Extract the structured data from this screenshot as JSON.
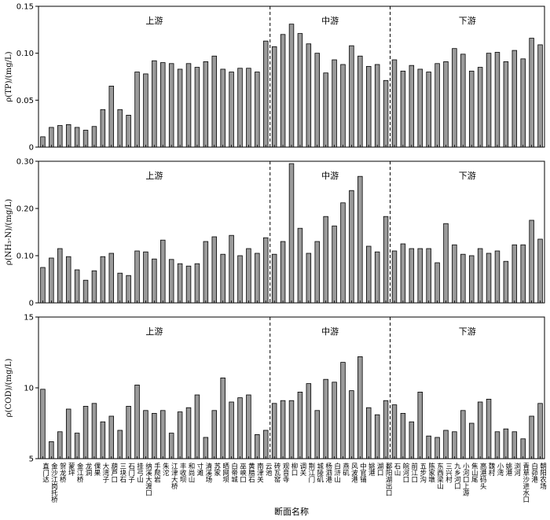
{
  "chart_data": [
    {
      "type": "bar",
      "ylabel": "ρ(TP)/(mg/L)",
      "ylim": [
        0,
        0.15
      ],
      "yticks": [
        "0",
        "0.05",
        "0.10",
        "0.15"
      ],
      "values": [
        0.011,
        0.021,
        0.023,
        0.024,
        0.021,
        0.018,
        0.022,
        0.04,
        0.065,
        0.04,
        0.034,
        0.08,
        0.078,
        0.092,
        0.09,
        0.089,
        0.083,
        0.089,
        0.085,
        0.091,
        0.097,
        0.083,
        0.08,
        0.084,
        0.084,
        0.08,
        0.113,
        0.107,
        0.12,
        0.131,
        0.121,
        0.11,
        0.1,
        0.079,
        0.093,
        0.088,
        0.108,
        0.097,
        0.086,
        0.088,
        0.071,
        0.093,
        0.081,
        0.087,
        0.083,
        0.08,
        0.089,
        0.091,
        0.105,
        0.099,
        0.081,
        0.085,
        0.1,
        0.101,
        0.091,
        0.103,
        0.094,
        0.116,
        0.109
      ]
    },
    {
      "type": "bar",
      "ylabel": "ρ(NH₃-N)/(mg/L)",
      "ylim": [
        0,
        0.3
      ],
      "yticks": [
        "0",
        "0.10",
        "0.20",
        "0.30"
      ],
      "values": [
        0.075,
        0.095,
        0.115,
        0.098,
        0.07,
        0.048,
        0.068,
        0.098,
        0.105,
        0.063,
        0.058,
        0.11,
        0.108,
        0.093,
        0.133,
        0.092,
        0.083,
        0.078,
        0.083,
        0.13,
        0.14,
        0.103,
        0.143,
        0.1,
        0.115,
        0.105,
        0.138,
        0.103,
        0.13,
        0.295,
        0.158,
        0.105,
        0.13,
        0.183,
        0.163,
        0.212,
        0.238,
        0.268,
        0.12,
        0.108,
        0.183,
        0.11,
        0.125,
        0.115,
        0.115,
        0.115,
        0.085,
        0.168,
        0.123,
        0.103,
        0.1,
        0.115,
        0.105,
        0.11,
        0.088,
        0.123,
        0.123,
        0.175,
        0.135
      ]
    },
    {
      "type": "bar",
      "ylabel": "ρ(COD)/(mg/L)",
      "ylim": [
        5,
        15
      ],
      "yticks": [
        "5",
        "10",
        "15"
      ],
      "values": [
        9.9,
        6.2,
        6.9,
        8.5,
        6.8,
        8.7,
        8.9,
        7.6,
        8.0,
        7.0,
        8.7,
        10.2,
        8.4,
        8.2,
        8.4,
        6.8,
        8.3,
        8.6,
        9.5,
        6.5,
        8.4,
        10.7,
        9.0,
        9.3,
        9.5,
        6.7,
        7.0,
        8.9,
        9.1,
        9.1,
        9.7,
        10.3,
        8.4,
        10.6,
        10.4,
        11.8,
        9.8,
        12.2,
        8.6,
        8.1,
        9.1,
        8.8,
        8.2,
        7.6,
        9.7,
        6.6,
        6.5,
        7.0,
        6.9,
        8.4,
        7.5,
        9.0,
        9.2,
        6.9,
        7.1,
        6.9,
        6.4,
        8.0,
        8.9
      ]
    }
  ],
  "regions": [
    "上游",
    "中游",
    "下游"
  ],
  "categories": [
    "直门达",
    "金沙江岗托桥",
    "贺龙桥",
    "蒙坪",
    "金江桥",
    "龙洞",
    "倮果",
    "大湾子",
    "葫芦口",
    "三块石",
    "石门子",
    "挂弓山",
    "纳溪大渡口",
    "手爬岩",
    "朱沱",
    "江津大桥",
    "丰收坝",
    "和尚山",
    "寸滩",
    "清溪场",
    "苏家",
    "晒网坝",
    "白帝城",
    "巫峡口",
    "黄腊石",
    "南津关",
    "云池",
    "砖瓦窑",
    "观音寺",
    "柳口",
    "调关",
    "荆江门",
    "城陵矶",
    "杨泗港",
    "白浒山",
    "燕矶",
    "风波港",
    "中官铺",
    "姚港",
    "湖口",
    "鄱阳湖出口",
    "石山",
    "皖河口",
    "前江口",
    "五步沟",
    "陈家墩",
    "东西梁山",
    "三兴村",
    "九乡河口",
    "小河口上游",
    "焦山尾",
    "高港码头",
    "魏村",
    "小湾",
    "姚港",
    "浏河",
    "青草沙进水口",
    "白茆港",
    "朝阳农场"
  ],
  "xlabel": "断面名称"
}
